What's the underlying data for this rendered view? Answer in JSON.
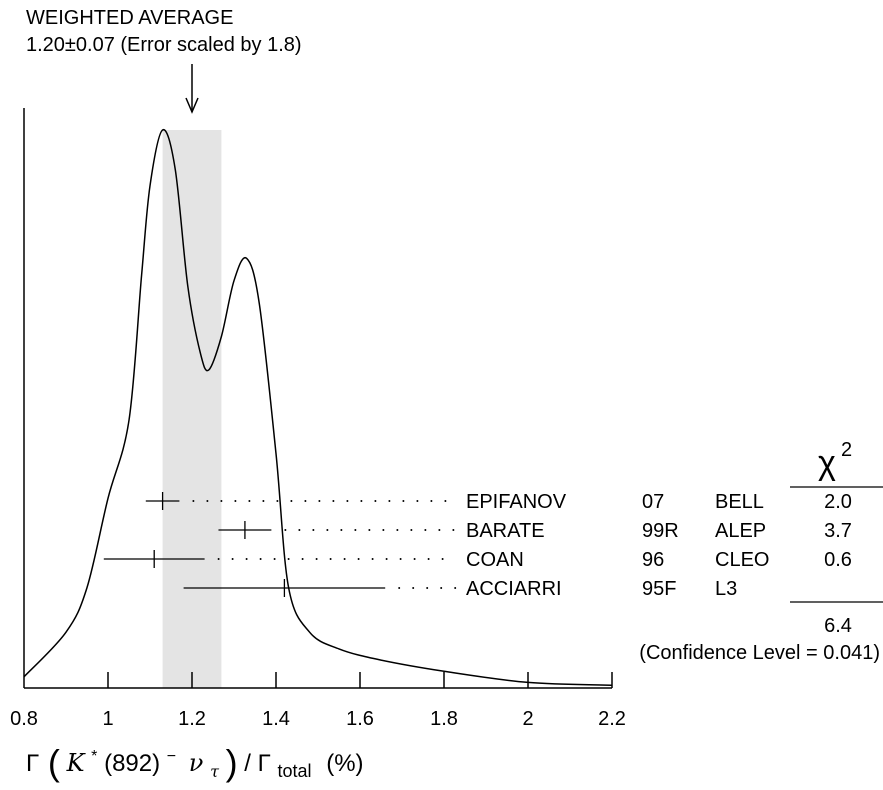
{
  "weighted_average": {
    "title": "WEIGHTED AVERAGE",
    "value_text": "1.20±0.07 (Error scaled by 1.8)"
  },
  "chi2_header": {
    "symbol": "χ",
    "superscript": "2"
  },
  "chi2_total": "6.4",
  "confidence_level": "(Confidence Level = 0.041)",
  "x_axis_label": {
    "gamma": "Γ",
    "particle": "K",
    "star": "*",
    "mass": "(892)",
    "charge": "−",
    "nu": "ν",
    "tau": "τ",
    "slash": "/",
    "total_gamma": "Γ",
    "total_sub": "total",
    "unit": "(%)"
  },
  "chart_data": {
    "type": "ideogram",
    "xlim": [
      0.8,
      2.2
    ],
    "x_ticks": [
      0.8,
      1,
      1.2,
      1.4,
      1.6,
      1.8,
      2,
      2.2
    ],
    "x_tick_labels": [
      "0.8",
      "1",
      "1.2",
      "1.4",
      "1.6",
      "1.8",
      "2",
      "2.2"
    ],
    "weighted_average": {
      "value": 1.2,
      "error": 0.07,
      "scale_factor": 1.8
    },
    "measurements": [
      {
        "name": "EPIFANOV",
        "year": "07",
        "experiment": "BELL",
        "chi2": "2.0",
        "value": 1.13,
        "error": 0.04
      },
      {
        "name": "BARATE",
        "year": "99R",
        "experiment": "ALEP",
        "chi2": "3.7",
        "value": 1.326,
        "error": 0.063
      },
      {
        "name": "COAN",
        "year": "96",
        "experiment": "CLEO",
        "chi2": "0.6",
        "value": 1.11,
        "error": 0.12
      },
      {
        "name": "ACCIARRI",
        "year": "95F",
        "experiment": "L3",
        "chi2": "",
        "value": 1.42,
        "error": 0.24
      }
    ],
    "ideogram_curve": [
      [
        0.8,
        0.02
      ],
      [
        0.9,
        0.1
      ],
      [
        0.95,
        0.18
      ],
      [
        1.0,
        0.34
      ],
      [
        1.05,
        0.48
      ],
      [
        1.08,
        0.74
      ],
      [
        1.1,
        0.9
      ],
      [
        1.13,
        1.0
      ],
      [
        1.16,
        0.93
      ],
      [
        1.19,
        0.72
      ],
      [
        1.22,
        0.6
      ],
      [
        1.24,
        0.57
      ],
      [
        1.27,
        0.63
      ],
      [
        1.3,
        0.73
      ],
      [
        1.33,
        0.77
      ],
      [
        1.36,
        0.69
      ],
      [
        1.4,
        0.42
      ],
      [
        1.43,
        0.18
      ],
      [
        1.48,
        0.1
      ],
      [
        1.55,
        0.07
      ],
      [
        1.65,
        0.05
      ],
      [
        1.8,
        0.03
      ],
      [
        2.0,
        0.01
      ],
      [
        2.2,
        0.005
      ]
    ]
  }
}
